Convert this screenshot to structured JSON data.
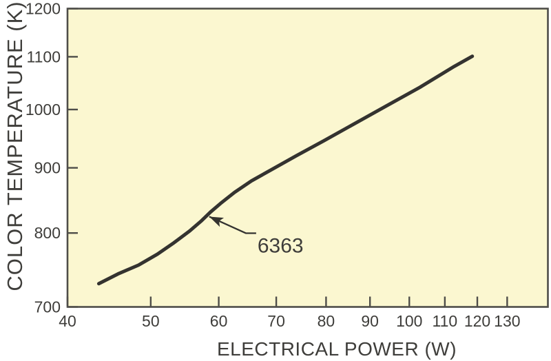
{
  "chart_data": {
    "type": "line",
    "title": "",
    "xlabel": "ELECTRICAL POWER (W)",
    "ylabel": "COLOR TEMPERATURE (K)",
    "x_scale": "log",
    "y_scale": "log",
    "xlim": [
      40,
      145
    ],
    "ylim": [
      700,
      1200
    ],
    "x_ticks": [
      40,
      50,
      60,
      70,
      80,
      90,
      100,
      110,
      120,
      130
    ],
    "y_ticks": [
      700,
      800,
      900,
      1000,
      1100,
      1200
    ],
    "grid": false,
    "legend": false,
    "series": [
      {
        "name": "6363",
        "points": [
          [
            43.5,
            730
          ],
          [
            45.8,
            743
          ],
          [
            48.4,
            755
          ],
          [
            50.9,
            770
          ],
          [
            53.2,
            786
          ],
          [
            55.5,
            803
          ],
          [
            57.3,
            818
          ],
          [
            58.7,
            831
          ],
          [
            60.3,
            844
          ],
          [
            62.6,
            861
          ],
          [
            65.5,
            879
          ],
          [
            69.3,
            898
          ],
          [
            73.9,
            920
          ],
          [
            79.5,
            945
          ],
          [
            86.4,
            975
          ],
          [
            93.9,
            1006
          ],
          [
            102.9,
            1041
          ],
          [
            112.8,
            1081
          ],
          [
            118.4,
            1101
          ]
        ]
      }
    ],
    "annotation": {
      "label": "6363",
      "target": [
        58.5,
        824
      ]
    },
    "colors": {
      "plot_bg": "#FBF7D0",
      "line": "#343330",
      "axis": "#4E4D49",
      "text": "#3E3D3A"
    }
  }
}
